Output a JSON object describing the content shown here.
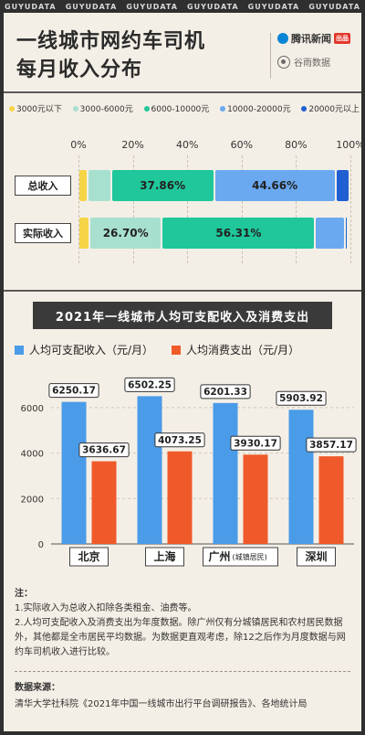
{
  "header": {
    "topbar": [
      "GUYUDATA",
      "GUYUDATA",
      "GUYUDATA",
      "GUYUDATA",
      "GUYUDATA",
      "GUYUDATA"
    ],
    "title_line1": "一线城市网约车司机",
    "title_line2": "每月收入分布",
    "brand1": "腾讯新闻",
    "brand1_badge": "出品",
    "brand2": "谷雨数据"
  },
  "legend_income_bands": [
    {
      "label": "3000元以下",
      "color": "#f5d547"
    },
    {
      "label": "3000-6000元",
      "color": "#a8e0cf"
    },
    {
      "label": "6000-10000元",
      "color": "#1fc79b"
    },
    {
      "label": "10000-20000元",
      "color": "#6aa9f0"
    },
    {
      "label": "20000元以上",
      "color": "#1f5fd1"
    }
  ],
  "chart_data": [
    {
      "type": "bar",
      "orientation": "horizontal-stacked",
      "xlim": [
        0,
        100
      ],
      "xticks": [
        "0%",
        "20%",
        "40%",
        "60%",
        "80%",
        "100%"
      ],
      "categories": [
        "总收入",
        "实际收入"
      ],
      "series": [
        {
          "name": "3000元以下",
          "values": [
            3.5,
            4.0
          ]
        },
        {
          "name": "3000-6000元",
          "values": [
            8.5,
            26.7
          ]
        },
        {
          "name": "6000-10000元",
          "values": [
            37.86,
            56.31
          ]
        },
        {
          "name": "10000-20000元",
          "values": [
            44.66,
            11.0
          ]
        },
        {
          "name": "20000元以上",
          "values": [
            5.0,
            1.0
          ]
        }
      ],
      "data_labels": [
        {
          "category": "总收入",
          "series": "6000-10000元",
          "text": "37.86%"
        },
        {
          "category": "总收入",
          "series": "10000-20000元",
          "text": "44.66%"
        },
        {
          "category": "实际收入",
          "series": "3000-6000元",
          "text": "26.70%"
        },
        {
          "category": "实际收入",
          "series": "6000-10000元",
          "text": "56.31%"
        }
      ]
    },
    {
      "type": "bar",
      "title": "2021年一线城市人均可支配收入及消费支出",
      "categories": [
        "北京",
        "上海",
        "广州",
        "深圳"
      ],
      "category_notes": [
        "",
        "",
        "(城镇居民)",
        ""
      ],
      "ylim": [
        0,
        7000
      ],
      "yticks": [
        0,
        2000,
        4000,
        6000
      ],
      "series": [
        {
          "name": "人均可支配收入（元/月）",
          "color": "#4a9be8",
          "values": [
            6250.17,
            6502.25,
            6201.33,
            5903.92
          ]
        },
        {
          "name": "人均消费支出（元/月）",
          "color": "#f05a2a",
          "values": [
            3636.67,
            4073.25,
            3930.17,
            3857.17
          ]
        }
      ],
      "data_labels": [
        [
          "6250.17",
          "6502.25",
          "6201.33",
          "5903.92"
        ],
        [
          "3636.67",
          "4073.25",
          "3930.17",
          "3857.17"
        ]
      ]
    }
  ],
  "notes": {
    "heading": "注：",
    "line1": "1.实际收入为总收入扣除各类租金、油费等。",
    "line2": "2.人均可支配收入及消费支出为年度数据。除广州仅有分城镇居民和农村居民数据外，其他都是全市居民平均数据。为数据更直观考虑，除12之后作为月度数据与网约车司机收入进行比较。"
  },
  "source": {
    "heading": "数据来源：",
    "text": "清华大学社科院《2021年中国一线城市出行平台调研报告》、各地统计局"
  }
}
